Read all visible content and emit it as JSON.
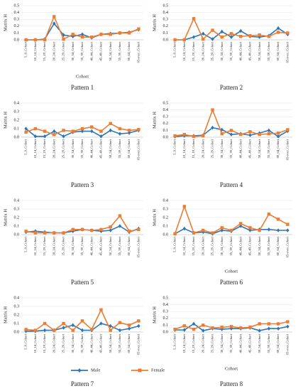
{
  "chart_data": [
    {
      "type": "line",
      "title": "Pattern 1",
      "ylabel": "Matrix H",
      "xlabel": "Cohort",
      "categories": [
        "5_9_Cohort",
        "10_14_Cohort",
        "15_19_Cohort",
        "20_24_Cohort",
        "25_29_Cohort",
        "30_34_Cohort",
        "35_39_Cohort",
        "40_44_Cohort",
        "45_49_Cohort",
        "50_54_Cohort",
        "55_59_Cohort",
        "60_64_Cohort",
        "65-over_Cohort"
      ],
      "ylim": [
        0,
        0.5
      ],
      "yticks": [
        {
          "value": 0,
          "label": "0.0"
        },
        0.1,
        0.2,
        0.3,
        0.4,
        0.5
      ],
      "series": [
        {
          "name": "Male",
          "color": "#2e75b6",
          "values": [
            0,
            0,
            0.01,
            0.24,
            0.07,
            0.05,
            0.08,
            0.03,
            0.08,
            0.09,
            0.1,
            0.11,
            0.15
          ]
        },
        {
          "name": "Female",
          "color": "#ed7d31",
          "values": [
            0,
            0,
            0,
            0.34,
            0.01,
            0.08,
            0.04,
            0.04,
            0.08,
            0.08,
            0.1,
            0.1,
            0.16
          ]
        }
      ]
    },
    {
      "type": "line",
      "title": "Pattern 2",
      "ylabel": "Matrix H",
      "categories": [
        "5_9_Cohort",
        "10_14_Cohort",
        "15_19_Cohort",
        "20_24_Cohort",
        "25_29_Cohort",
        "30_34_Cohort",
        "35_39_Cohort",
        "40_44_Cohort",
        "45_49_Cohort",
        "50_54_Cohort",
        "55_59_Cohort",
        "60_64_Cohort",
        "65-over_Cohort"
      ],
      "ylim": [
        0,
        0.5
      ],
      "yticks": [
        {
          "value": 0,
          "label": "0.0"
        },
        0.1,
        0.2,
        0.3,
        0.4,
        0.5
      ],
      "series": [
        {
          "name": "Male",
          "color": "#2e75b6",
          "values": [
            0,
            0,
            0.04,
            0.09,
            0.01,
            0.12,
            0.04,
            0.13,
            0.05,
            0.04,
            0.06,
            0.17,
            0.08
          ]
        },
        {
          "name": "Female",
          "color": "#ed7d31",
          "values": [
            0,
            0,
            0.31,
            0.01,
            0.14,
            0.04,
            0.09,
            0.05,
            0.06,
            0.07,
            0.05,
            0.11,
            0.1
          ]
        }
      ]
    },
    {
      "type": "line",
      "title": "Pattern 3",
      "ylabel": "Matrix H",
      "categories": [
        "5_9_Cohort",
        "10_14_Cohort",
        "15_19_Cohort",
        "20_24_Cohort",
        "25_29_Cohort",
        "30_34_Cohort",
        "35_39_Cohort",
        "40_44_Cohort",
        "45_49_Cohort",
        "50_54_Cohort",
        "55_59_Cohort",
        "60_64_Cohort",
        "65-over_Cohort"
      ],
      "ylim": [
        0,
        0.4
      ],
      "yticks": [
        {
          "value": 0,
          "label": "0.0"
        },
        0.1,
        0.2,
        0.3,
        0.4
      ],
      "series": [
        {
          "name": "Male",
          "color": "#2e75b6",
          "values": [
            0.1,
            0.01,
            0.01,
            0.07,
            0.01,
            0.06,
            0.07,
            0.07,
            0.01,
            0.08,
            0.04,
            0.05,
            0.08
          ]
        },
        {
          "name": "Female",
          "color": "#ed7d31",
          "values": [
            0.06,
            0.1,
            0.07,
            0.03,
            0.08,
            0.07,
            0.1,
            0.12,
            0.07,
            0.16,
            0.1,
            0.08,
            0.09
          ]
        }
      ]
    },
    {
      "type": "line",
      "title": "Pattern 4",
      "ylabel": "Matrix H",
      "categories": [
        "5_9_Cohort",
        "10_14_Cohort",
        "15_19_Cohort",
        "20_24_Cohort",
        "25_29_Cohort",
        "30_34_Cohort",
        "35_39_Cohort",
        "40_44_Cohort",
        "45_49_Cohort",
        "50_54_Cohort",
        "55_59_Cohort",
        "60_64_Cohort",
        "65-over_Cohort"
      ],
      "ylim": [
        0,
        0.5
      ],
      "yticks": [
        {
          "value": 0,
          "label": "0.0"
        },
        0.1,
        0.2,
        0.3,
        0.4,
        0.5
      ],
      "series": [
        {
          "name": "Male",
          "color": "#2e75b6",
          "values": [
            0.01,
            0.02,
            0.02,
            0.03,
            0.14,
            0.11,
            0.04,
            0.05,
            0.03,
            0.06,
            0.1,
            0.01,
            0.09
          ]
        },
        {
          "name": "Female",
          "color": "#ed7d31",
          "values": [
            0.02,
            0.04,
            0.01,
            0.02,
            0.4,
            0.05,
            0.1,
            0.04,
            0.08,
            0.04,
            0.05,
            0.06,
            0.11
          ]
        }
      ]
    },
    {
      "type": "line",
      "title": "Pattern 5",
      "ylabel": "Matrix H",
      "categories": [
        "5_9_Cohort",
        "10_14_Cohort",
        "15_19_Cohort",
        "20_24_Cohort",
        "25_29_Cohort",
        "30_34_Cohort",
        "35_39_Cohort",
        "40_44_Cohort",
        "45_49_Cohort",
        "50_54_Cohort",
        "55_59_Cohort",
        "60_64_Cohort",
        "65-over_Cohort"
      ],
      "ylim": [
        0,
        0.4
      ],
      "yticks": [
        {
          "value": 0,
          "label": "0.0"
        },
        0.1,
        0.2,
        0.3,
        0.4
      ],
      "series": [
        {
          "name": "Male",
          "color": "#2e75b6",
          "values": [
            0.03,
            0.04,
            0.03,
            0.02,
            0.02,
            0.04,
            0.06,
            0.05,
            0.04,
            0.05,
            0.1,
            0.03,
            0.07
          ]
        },
        {
          "name": "Female",
          "color": "#ed7d31",
          "values": [
            0.04,
            0.02,
            0.02,
            0.02,
            0.02,
            0.06,
            0.06,
            0.05,
            0.06,
            0.09,
            0.22,
            0.04,
            0.06
          ]
        }
      ]
    },
    {
      "type": "line",
      "title": "Pattern 6",
      "ylabel": "Matrix H",
      "xlabel": "Cohort",
      "categories": [
        "5_9_Cohort",
        "10_14_Cohort",
        "15_19_Cohort",
        "20_24_Cohort",
        "25_29_Cohort",
        "30_34_Cohort",
        "35_39_Cohort",
        "40_44_Cohort",
        "45_49_Cohort",
        "50_54_Cohort",
        "55_59_Cohort",
        "60_64_Cohort",
        "65-over_Cohort"
      ],
      "ylim": [
        0,
        0.4
      ],
      "yticks": [
        {
          "value": 0,
          "label": "0.0"
        },
        0.1,
        0.2,
        0.3,
        0.4
      ],
      "series": [
        {
          "name": "Male",
          "color": "#2e75b6",
          "values": [
            0.01,
            0.07,
            0.02,
            0.03,
            0.01,
            0.05,
            0.04,
            0.1,
            0.05,
            0.06,
            0.06,
            0.05,
            0.05
          ]
        },
        {
          "name": "Female",
          "color": "#ed7d31",
          "values": [
            0.01,
            0.33,
            0.02,
            0.05,
            0.02,
            0.08,
            0.05,
            0.13,
            0.08,
            0.05,
            0.24,
            0.18,
            0.12
          ]
        }
      ]
    },
    {
      "type": "line",
      "title": "Pattern 7",
      "ylabel": "Matrix H",
      "categories": [
        "5_9_Cohort",
        "10_14_Cohort",
        "15_19_Cohort",
        "20_24_Cohort",
        "25_29_Cohort",
        "30_34_Cohort",
        "35_39_Cohort",
        "40_44_Cohort",
        "45_49_Cohort",
        "50_54_Cohort",
        "55_59_Cohort",
        "60_64_Cohort",
        "65-over_Cohort"
      ],
      "ylim": [
        0,
        0.4
      ],
      "yticks": [
        {
          "value": 0,
          "label": "0.0"
        },
        0.1,
        0.2,
        0.3,
        0.4
      ],
      "series": [
        {
          "name": "Male",
          "color": "#2e75b6",
          "values": [
            0.01,
            0.01,
            0.02,
            0.02,
            0.05,
            0.08,
            0.02,
            0.02,
            0.1,
            0.07,
            0.02,
            0.04,
            0.07
          ]
        },
        {
          "name": "Female",
          "color": "#ed7d31",
          "values": [
            0.03,
            0.02,
            0.1,
            0.02,
            0.1,
            0.02,
            0.13,
            0.03,
            0.26,
            0.02,
            0.11,
            0.08,
            0.13
          ]
        }
      ]
    },
    {
      "type": "line",
      "title": "Pattern 8",
      "ylabel": "Matrix H",
      "xlabel": "Cohort",
      "categories": [
        "5_9_Cohort",
        "10_14_Cohort",
        "15_19_Cohort",
        "20_24_Cohort",
        "25_29_Cohort",
        "30_34_Cohort",
        "35_39_Cohort",
        "40_44_Cohort",
        "45_49_Cohort",
        "50_54_Cohort",
        "55_59_Cohort",
        "60_64_Cohort",
        "65-over_Cohort"
      ],
      "ylim": [
        0,
        0.5
      ],
      "yticks": [
        {
          "value": 0,
          "label": "0.0"
        },
        0.1,
        0.2,
        0.3,
        0.4,
        0.5
      ],
      "series": [
        {
          "name": "Male",
          "color": "#2e75b6",
          "values": [
            0.03,
            0.03,
            0.12,
            0.02,
            0.05,
            0.04,
            0.05,
            0.05,
            0.06,
            0.02,
            0.05,
            0.05,
            0.08
          ]
        },
        {
          "name": "Female",
          "color": "#ed7d31",
          "values": [
            0.04,
            0.09,
            0.04,
            0.1,
            0.06,
            0.07,
            0.08,
            0.06,
            0.07,
            0.12,
            0.12,
            0.12,
            0.15
          ]
        }
      ]
    }
  ]
}
